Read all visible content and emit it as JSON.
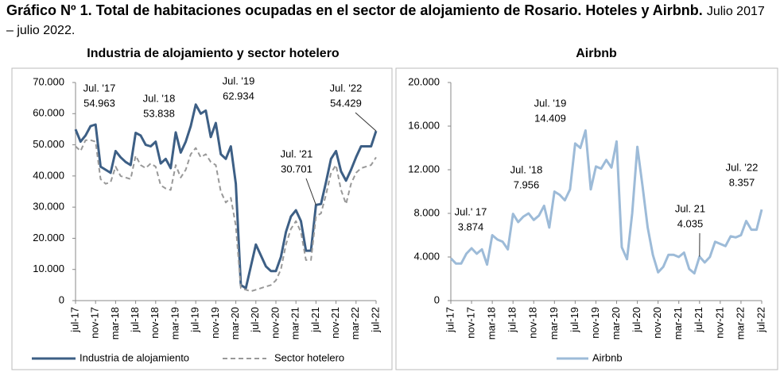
{
  "title": "Gráfico Nº 1. Total de habitaciones ocupadas en el sector de alojamiento de Rosario. Hoteles y Airbnb.",
  "subtitle": "Julio 2017 – julio 2022.",
  "chart_data": [
    {
      "type": "line",
      "title": "Industria de alojamiento y sector hotelero",
      "categories": [
        "jul-17",
        null,
        null,
        null,
        "nov-17",
        null,
        null,
        null,
        "mar-18",
        null,
        null,
        null,
        "jul-18",
        null,
        null,
        null,
        "nov-18",
        null,
        null,
        null,
        "mar-19",
        null,
        null,
        null,
        "jul-19",
        null,
        null,
        null,
        "nov-19",
        null,
        null,
        null,
        "mar-20",
        null,
        null,
        null,
        "jul-20",
        null,
        null,
        null,
        "nov-20",
        null,
        null,
        null,
        "mar-21",
        null,
        null,
        null,
        "jul-21",
        null,
        null,
        null,
        "nov-21",
        null,
        null,
        null,
        "mar-22",
        null,
        null,
        null,
        "jul-22"
      ],
      "series": [
        {
          "name": "Industria de alojamiento",
          "color": "#3d5f85",
          "line_style": "solid",
          "values": [
            54963,
            51000,
            53000,
            56000,
            56500,
            43000,
            42000,
            41000,
            48000,
            46000,
            44500,
            43500,
            53838,
            53000,
            50000,
            49500,
            51000,
            44000,
            45500,
            42500,
            54000,
            47500,
            51000,
            56000,
            62934,
            60000,
            61000,
            52500,
            57000,
            47000,
            45500,
            49500,
            37500,
            5000,
            4000,
            11000,
            18000,
            14500,
            11000,
            9500,
            9500,
            14000,
            22000,
            27000,
            29000,
            25500,
            16000,
            16000,
            30701,
            31000,
            38000,
            45500,
            48000,
            41500,
            38500,
            42000,
            46000,
            49500,
            49500,
            49500,
            54429
          ]
        },
        {
          "name": "Sector hotelero",
          "color": "#999999",
          "line_style": "dashed",
          "values": [
            49500,
            48000,
            51500,
            51500,
            51000,
            39000,
            37500,
            38000,
            43000,
            40000,
            39500,
            39000,
            46500,
            43500,
            42500,
            44000,
            43000,
            37000,
            36000,
            35500,
            43500,
            39500,
            42000,
            47000,
            49000,
            46000,
            47000,
            44500,
            43500,
            35000,
            31500,
            33000,
            24000,
            4000,
            3500,
            3000,
            3500,
            4000,
            4500,
            5000,
            6500,
            10000,
            18000,
            23000,
            25500,
            22000,
            13000,
            13000,
            27000,
            28000,
            34000,
            41000,
            43500,
            35500,
            31000,
            37500,
            41000,
            42500,
            43000,
            43500,
            46000
          ]
        }
      ],
      "ylim": [
        0,
        70000
      ],
      "yticks": [
        0,
        {
          "value": 10000,
          "label": "10.000"
        },
        {
          "value": 20000,
          "label": "20.000"
        },
        {
          "value": 30000,
          "label": "30.000"
        },
        {
          "value": 40000,
          "label": "40.000"
        },
        {
          "value": 50000,
          "label": "50.000"
        },
        {
          "value": 60000,
          "label": "60.000"
        },
        {
          "value": 70000,
          "label": "70.000"
        }
      ],
      "annotations": [
        {
          "label": "Jul. '17",
          "value_label": "54.963"
        },
        {
          "label": "Jul. '18",
          "value_label": "53.838"
        },
        {
          "label": "Jul. '19",
          "value_label": "62.934"
        },
        {
          "label": "Jul. '21",
          "value_label": "30.701"
        },
        {
          "label": "Jul. '22",
          "value_label": "54.429"
        }
      ],
      "legend": "bottom"
    },
    {
      "type": "line",
      "title": "Airbnb",
      "categories": [
        "jul-17",
        null,
        null,
        null,
        "nov-17",
        null,
        null,
        null,
        "mar-18",
        null,
        null,
        null,
        "jul-18",
        null,
        null,
        null,
        "nov-18",
        null,
        null,
        null,
        "mar-19",
        null,
        null,
        null,
        "jul-19",
        null,
        null,
        null,
        "nov-19",
        null,
        null,
        null,
        "mar-20",
        null,
        null,
        null,
        "jul-20",
        null,
        null,
        null,
        "nov-20",
        null,
        null,
        null,
        "mar-21",
        null,
        null,
        null,
        "jul-21",
        null,
        null,
        null,
        "nov-21",
        null,
        null,
        null,
        "mar-22",
        null,
        null,
        null,
        "jul-22"
      ],
      "series": [
        {
          "name": "Airbnb",
          "color": "#9dbbd8",
          "line_style": "solid",
          "values": [
            3874,
            3400,
            3400,
            4300,
            4800,
            4300,
            4700,
            3300,
            6000,
            5600,
            5400,
            4700,
            7956,
            7200,
            7700,
            8000,
            7400,
            7800,
            8700,
            6700,
            10000,
            9700,
            9200,
            10200,
            14409,
            14000,
            15600,
            10200,
            12300,
            12100,
            12900,
            12200,
            14600,
            4900,
            3800,
            8000,
            14100,
            10500,
            6700,
            4200,
            2600,
            3100,
            4200,
            4200,
            4000,
            4400,
            2900,
            2500,
            4035,
            3500,
            4000,
            5400,
            5200,
            5000,
            5900,
            5800,
            6000,
            7300,
            6500,
            6500,
            8357
          ]
        }
      ],
      "ylim": [
        0,
        20000
      ],
      "yticks": [
        0,
        {
          "value": 4000,
          "label": "4.000"
        },
        {
          "value": 8000,
          "label": "8.000"
        },
        {
          "value": 12000,
          "label": "12.000"
        },
        {
          "value": 16000,
          "label": "16.000"
        },
        {
          "value": 20000,
          "label": "20.000"
        }
      ],
      "annotations": [
        {
          "label": "Jul.' 17",
          "value_label": "3.874"
        },
        {
          "label": "Jul. '18",
          "value_label": "7.956"
        },
        {
          "label": "Jul. '19",
          "value_label": "14.409"
        },
        {
          "label": "Jul. 21",
          "value_label": "4.035"
        },
        {
          "label": "Jul. '22",
          "value_label": "8.357"
        }
      ],
      "legend": "bottom"
    }
  ]
}
